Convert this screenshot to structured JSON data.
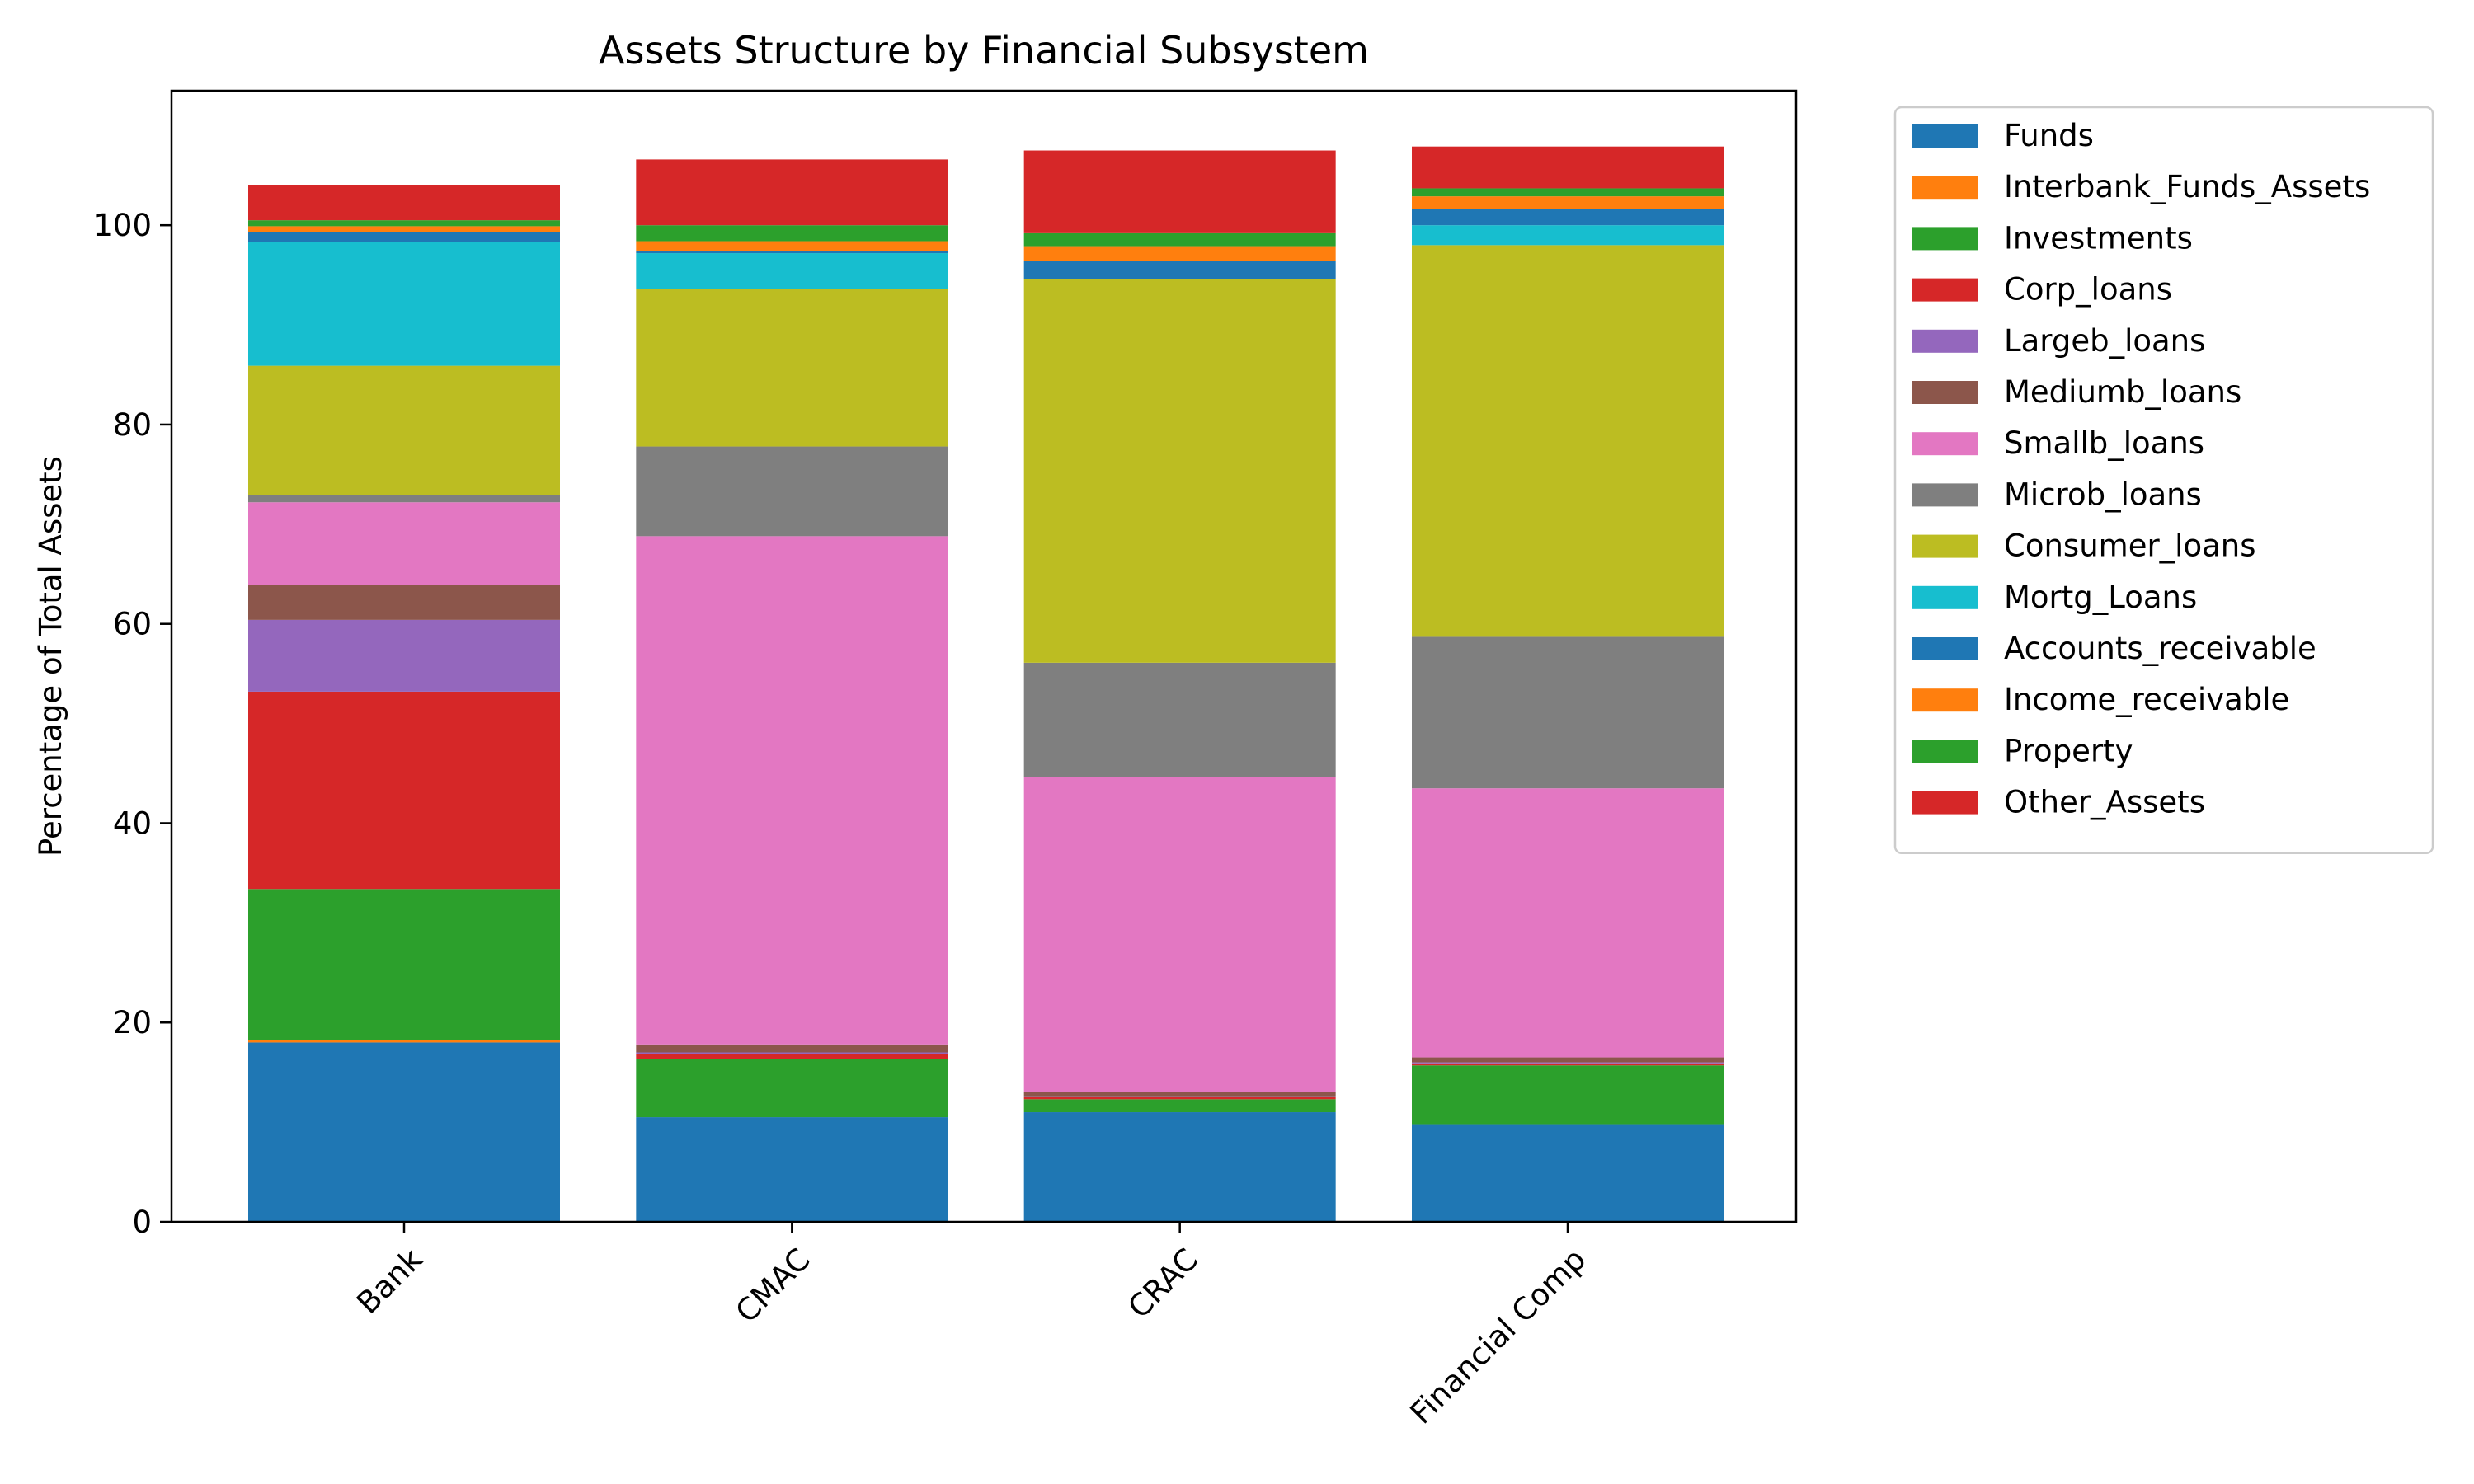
{
  "chart_data": {
    "type": "bar",
    "stacked": true,
    "title": "Assets Structure by Financial Subsystem",
    "xlabel": "",
    "ylabel": "Percentage of Total Assets",
    "categories": [
      "Bank",
      "CMAC",
      "CRAC",
      "Financial Comp"
    ],
    "ylim": [
      0,
      113.5
    ],
    "yticks": [
      0,
      20,
      40,
      60,
      80,
      100
    ],
    "grid": false,
    "legend_position": "outside-right",
    "series": [
      {
        "name": "Funds",
        "color": "#1f77b4",
        "values": [
          18.0,
          10.5,
          11.0,
          9.8
        ]
      },
      {
        "name": "Interbank_Funds_Assets",
        "color": "#ff7f0e",
        "values": [
          0.2,
          0.0,
          0.0,
          0.0
        ]
      },
      {
        "name": "Investments",
        "color": "#2ca02c",
        "values": [
          15.2,
          5.8,
          1.3,
          5.9
        ]
      },
      {
        "name": "Corp_loans",
        "color": "#d62728",
        "values": [
          19.8,
          0.5,
          0.2,
          0.2
        ]
      },
      {
        "name": "Largeb_loans",
        "color": "#9467bd",
        "values": [
          7.2,
          0.2,
          0.1,
          0.1
        ]
      },
      {
        "name": "Mediumb_loans",
        "color": "#8c564b",
        "values": [
          3.5,
          0.8,
          0.4,
          0.5
        ]
      },
      {
        "name": "Smallb_loans",
        "color": "#e377c2",
        "values": [
          8.3,
          51.0,
          31.6,
          27.0
        ]
      },
      {
        "name": "Microb_loans",
        "color": "#7f7f7f",
        "values": [
          0.7,
          9.0,
          11.5,
          15.2
        ]
      },
      {
        "name": "Consumer_loans",
        "color": "#bcbd22",
        "values": [
          13.0,
          15.8,
          38.5,
          39.3
        ]
      },
      {
        "name": "Mortg_Loans",
        "color": "#17becf",
        "values": [
          12.4,
          3.6,
          0.0,
          2.0
        ]
      },
      {
        "name": "Accounts_receivable",
        "color": "#1f77b4",
        "values": [
          1.0,
          0.2,
          1.8,
          1.6
        ]
      },
      {
        "name": "Income_receivable",
        "color": "#ff7f0e",
        "values": [
          0.6,
          1.0,
          1.5,
          1.3
        ]
      },
      {
        "name": "Property",
        "color": "#2ca02c",
        "values": [
          0.6,
          1.6,
          1.3,
          0.8
        ]
      },
      {
        "name": "Other_Assets",
        "color": "#d62728",
        "values": [
          3.5,
          6.6,
          8.3,
          4.2
        ]
      }
    ]
  }
}
